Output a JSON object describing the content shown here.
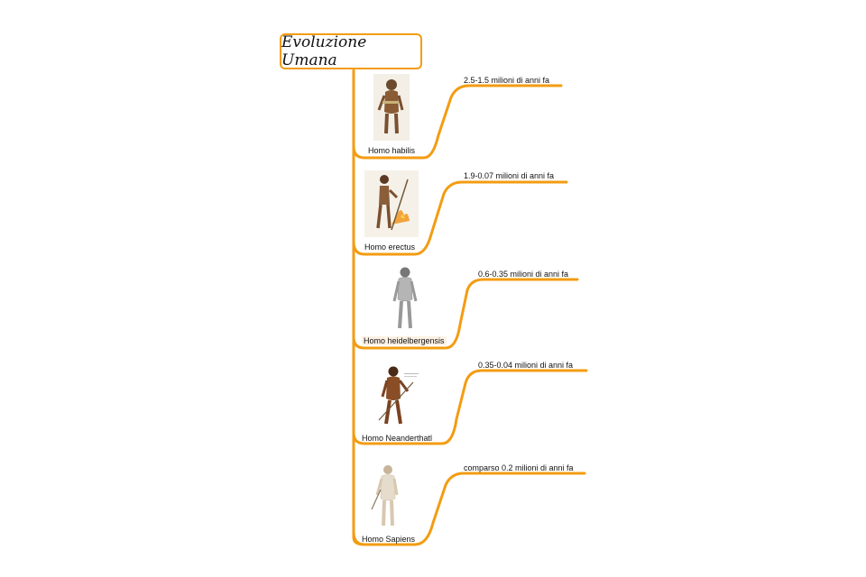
{
  "title": "Evoluzione Umana",
  "colors": {
    "branch": "#f39c12"
  },
  "species": [
    {
      "name": "Homo habilis",
      "date": "2.5-1.5 milioni di anni fa",
      "figure": "hominin-figure-habilis"
    },
    {
      "name": "Homo erectus",
      "date": "1.9-0.07 milioni di anni fa",
      "figure": "hominin-figure-erectus"
    },
    {
      "name": "Homo heidelbergensis",
      "date": "0.6-0.35 milioni di anni fa",
      "figure": "hominin-figure-heidelbergensis"
    },
    {
      "name": "Homo Neanderthatl",
      "date": "0.35-0.04 milioni di anni fa",
      "figure": "hominin-figure-neanderthal"
    },
    {
      "name": "Homo Sapiens",
      "date": "comparso 0.2 milioni di anni fa",
      "figure": "hominin-figure-sapiens"
    }
  ]
}
